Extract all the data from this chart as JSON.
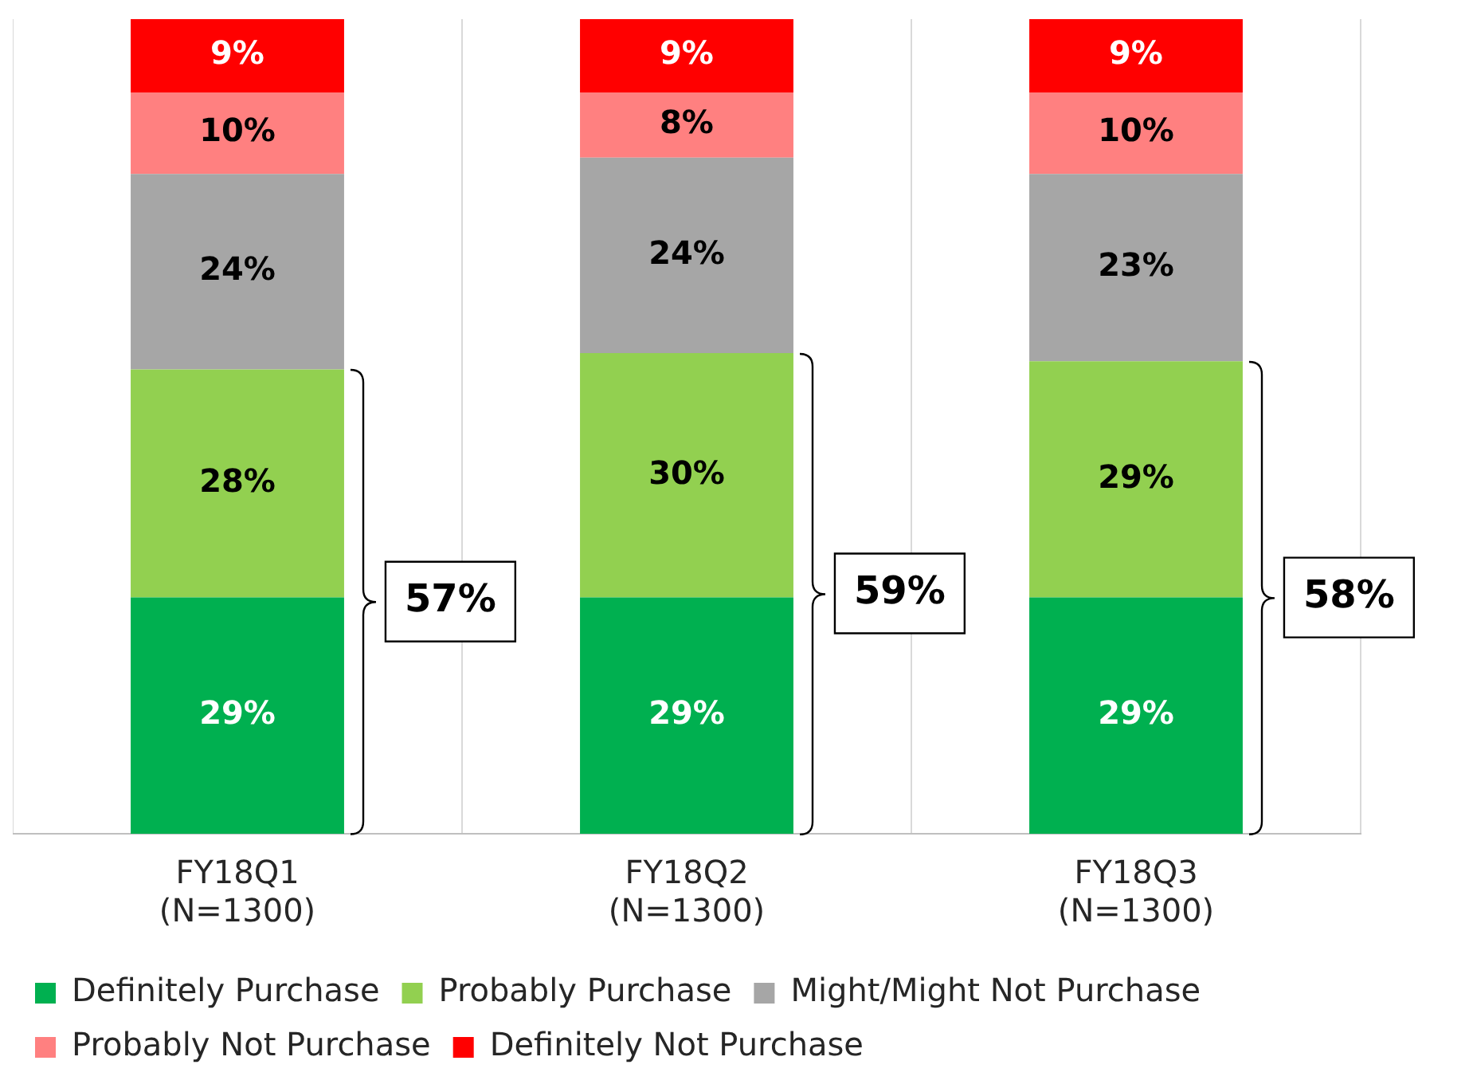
{
  "chart_data": {
    "type": "bar",
    "stacked": true,
    "categories": [
      "FY18Q1\n(N=1300)",
      "FY18Q2\n(N=1300)",
      "FY18Q3\n(N=1300)"
    ],
    "series": [
      {
        "name": "Definitely Purchase",
        "color": "#00b050",
        "values": [
          29,
          29,
          29
        ],
        "value_labels": [
          "29%",
          "29%",
          "29%"
        ]
      },
      {
        "name": "Probably Purchase",
        "color": "#92d050",
        "values": [
          28,
          30,
          29
        ],
        "value_labels": [
          "28%",
          "30%",
          "29%"
        ]
      },
      {
        "name": "Might/Might Not Purchase",
        "color": "#a6a6a6",
        "values": [
          24,
          24,
          23
        ],
        "value_labels": [
          "24%",
          "24%",
          "23%"
        ]
      },
      {
        "name": "Probably Not Purchase",
        "color": "#ff8080",
        "values": [
          10,
          8,
          10
        ],
        "value_labels": [
          "10%",
          "8%",
          "10%"
        ]
      },
      {
        "name": "Definitely Not Purchase",
        "color": "#ff0000",
        "values": [
          9,
          9,
          9
        ],
        "value_labels": [
          "9%",
          "9%",
          "9%"
        ]
      }
    ],
    "annotations": [
      "57%",
      "59%",
      "58%"
    ],
    "grid": "x",
    "legend": "bottom"
  }
}
